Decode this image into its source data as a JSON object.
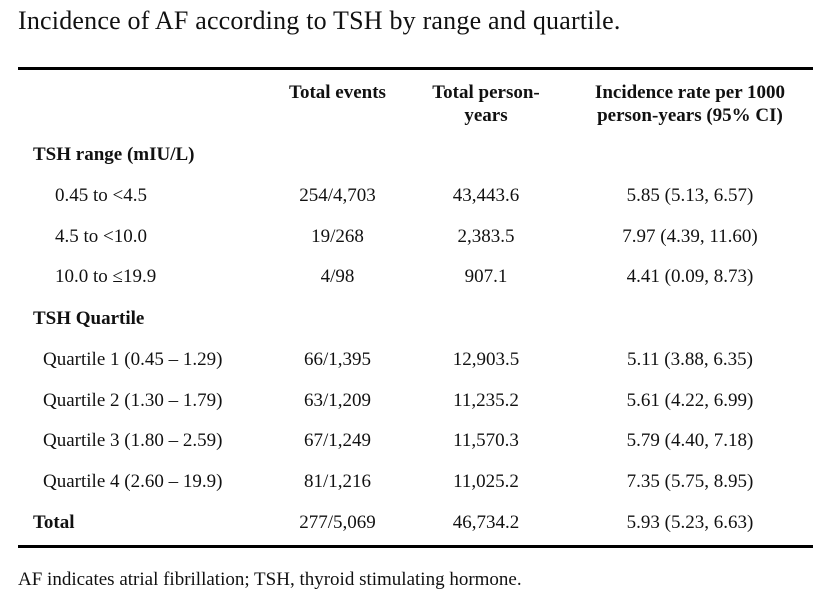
{
  "title": "Incidence of AF according to TSH by range and quartile.",
  "headers": {
    "col1": "Total events",
    "col2_line1": "Total person-",
    "col2_line2": "years",
    "col3_line1": "Incidence rate per 1000",
    "col3_line2": "person-years (95% CI)"
  },
  "sections": {
    "range": "TSH range (mIU/L)",
    "quartile": "TSH Quartile"
  },
  "rows": [
    {
      "label": "0.45 to <4.5",
      "events": "254/4,703",
      "py": "43,443.6",
      "rate": "5.85 (5.13, 6.57)"
    },
    {
      "label": "4.5 to <10.0",
      "events": "19/268",
      "py": "2,383.5",
      "rate": "7.97 (4.39, 11.60)"
    },
    {
      "label": "10.0 to ≤19.9",
      "events": "4/98",
      "py": "907.1",
      "rate": "4.41 (0.09, 8.73)"
    },
    {
      "label": "Quartile 1 (0.45 – 1.29)",
      "events": "66/1,395",
      "py": "12,903.5",
      "rate": "5.11 (3.88, 6.35)"
    },
    {
      "label": "Quartile 2 (1.30 – 1.79)",
      "events": "63/1,209",
      "py": "11,235.2",
      "rate": "5.61 (4.22, 6.99)"
    },
    {
      "label": "Quartile 3 (1.80 – 2.59)",
      "events": "67/1,249",
      "py": "11,570.3",
      "rate": "5.79 (4.40, 7.18)"
    },
    {
      "label": "Quartile 4 (2.60 – 19.9)",
      "events": "81/1,216",
      "py": "11,025.2",
      "rate": "7.35 (5.75, 8.95)"
    }
  ],
  "total": {
    "label": "Total",
    "events": "277/5,069",
    "py": "46,734.2",
    "rate": "5.93 (5.23, 6.63)"
  },
  "footnote": "AF indicates atrial fibrillation; TSH, thyroid stimulating hormone."
}
